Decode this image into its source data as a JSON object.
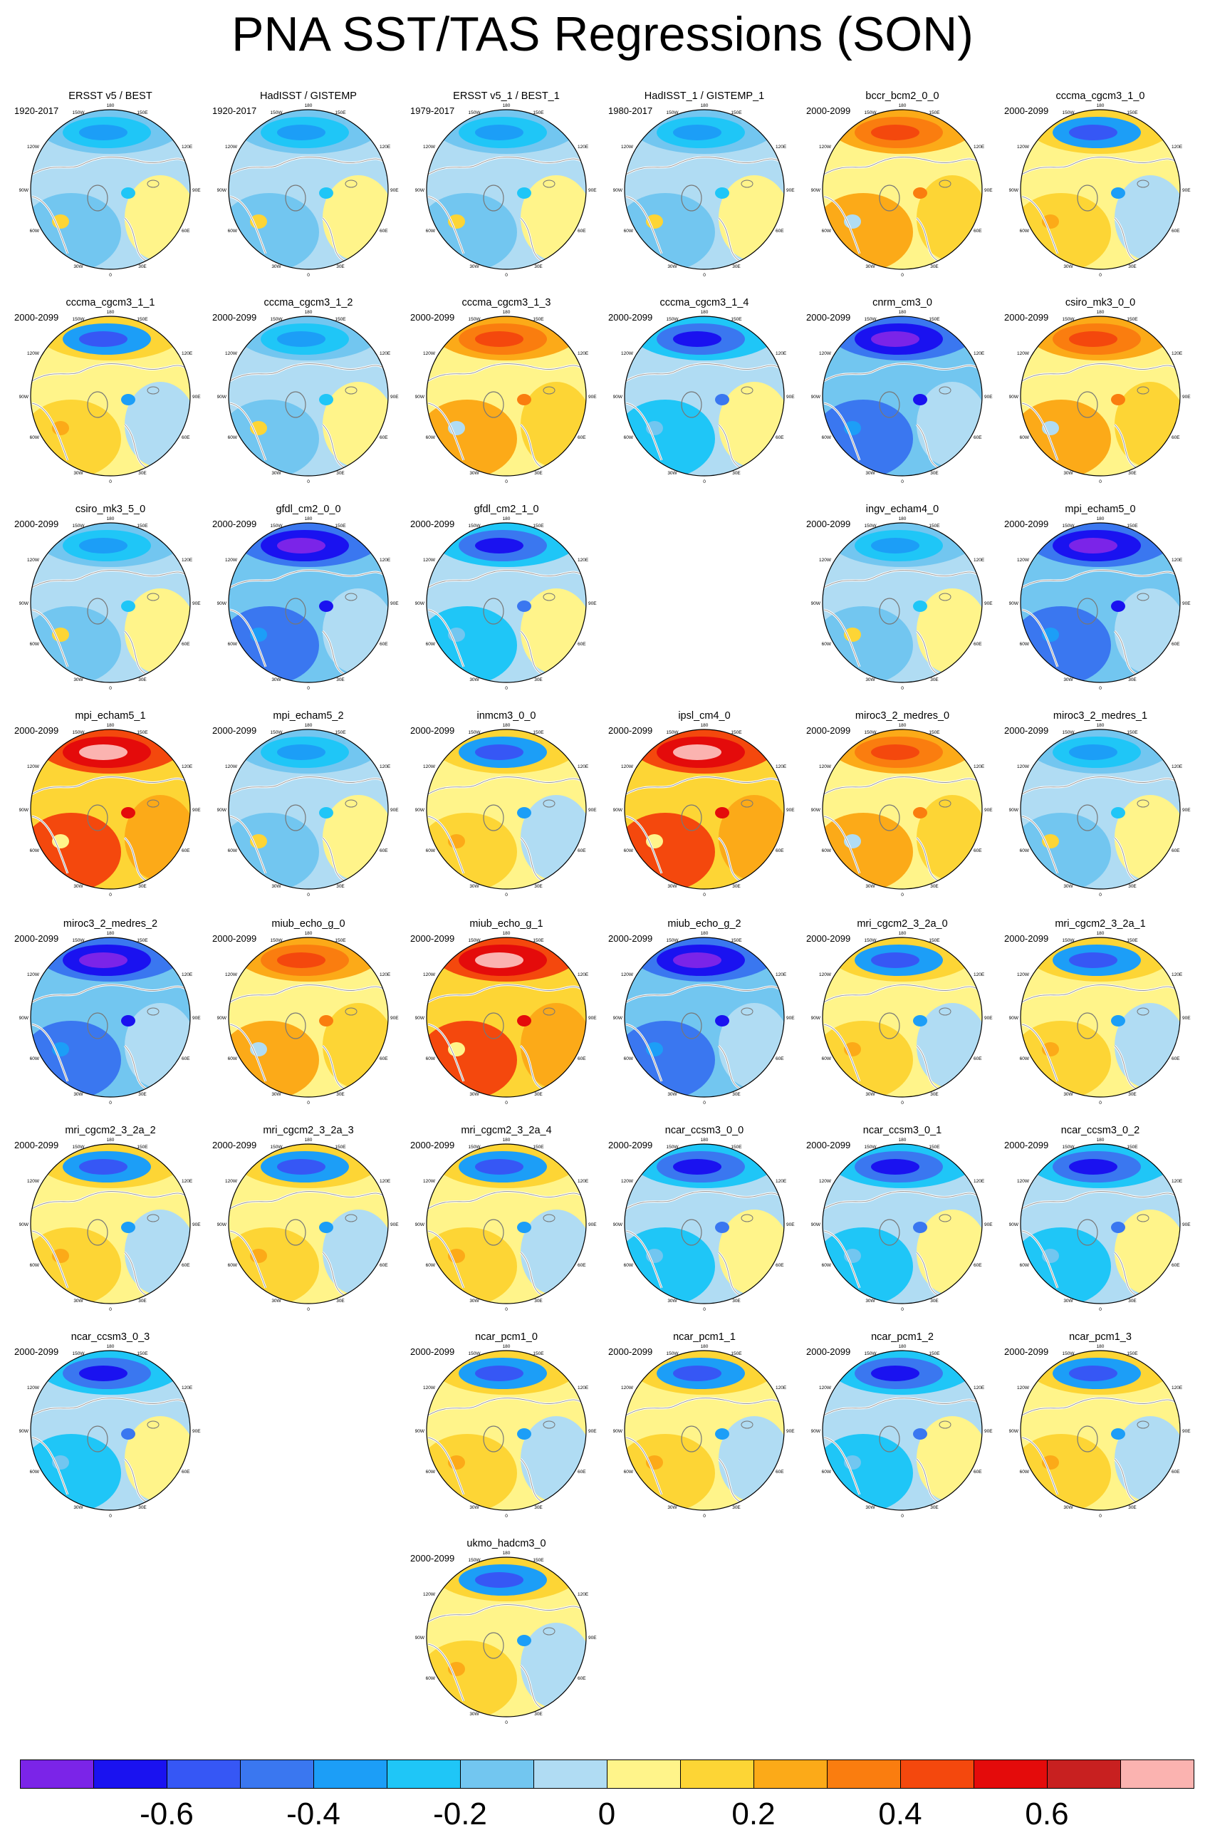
{
  "title": "PNA SST/TAS Regressions (SON)",
  "lon_labels": [
    "180",
    "150W",
    "150E",
    "120W",
    "120E",
    "90W",
    "90E",
    "60W",
    "60E",
    "30W",
    "30E",
    "0"
  ],
  "colorbar": {
    "colors": [
      "#7b24e8",
      "#1a12f0",
      "#3657f5",
      "#3a77f0",
      "#1c9ef7",
      "#1fc6f7",
      "#72c6f0",
      "#b0dcf3",
      "#fff48a",
      "#fdd535",
      "#fcaa18",
      "#fa7d0f",
      "#f4480d",
      "#e40b0b",
      "#c82020",
      "#fbb3b0"
    ],
    "labels": [
      "-0.6",
      "-0.4",
      "-0.2",
      "0",
      "0.2",
      "0.4",
      "0.6"
    ]
  },
  "panels": [
    {
      "row": 0,
      "col": 0,
      "title": "ERSST v5 / BEST",
      "period": "1920-2017",
      "pattern": "obs"
    },
    {
      "row": 0,
      "col": 1,
      "title": "HadISST / GISTEMP",
      "period": "1920-2017",
      "pattern": "obs"
    },
    {
      "row": 0,
      "col": 2,
      "title": "ERSST v5_1 / BEST_1",
      "period": "1979-2017",
      "pattern": "obs"
    },
    {
      "row": 0,
      "col": 3,
      "title": "HadISST_1 / GISTEMP_1",
      "period": "1980-2017",
      "pattern": "obs"
    },
    {
      "row": 0,
      "col": 4,
      "title": "bccr_bcm2_0_0",
      "period": "2000-2099",
      "pattern": "warm"
    },
    {
      "row": 0,
      "col": 5,
      "title": "cccma_cgcm3_1_0",
      "period": "2000-2099",
      "pattern": "mixed"
    },
    {
      "row": 1,
      "col": 0,
      "title": "cccma_cgcm3_1_1",
      "period": "2000-2099",
      "pattern": "mixed"
    },
    {
      "row": 1,
      "col": 1,
      "title": "cccma_cgcm3_1_2",
      "period": "2000-2099",
      "pattern": "obs"
    },
    {
      "row": 1,
      "col": 2,
      "title": "cccma_cgcm3_1_3",
      "period": "2000-2099",
      "pattern": "warm"
    },
    {
      "row": 1,
      "col": 3,
      "title": "cccma_cgcm3_1_4",
      "period": "2000-2099",
      "pattern": "cool"
    },
    {
      "row": 1,
      "col": 4,
      "title": "cnrm_cm3_0",
      "period": "2000-2099",
      "pattern": "deepcool"
    },
    {
      "row": 1,
      "col": 5,
      "title": "csiro_mk3_0_0",
      "period": "2000-2099",
      "pattern": "warm"
    },
    {
      "row": 2,
      "col": 0,
      "title": "csiro_mk3_5_0",
      "period": "2000-2099",
      "pattern": "obs"
    },
    {
      "row": 2,
      "col": 1,
      "title": "gfdl_cm2_0_0",
      "period": "2000-2099",
      "pattern": "deepcool"
    },
    {
      "row": 2,
      "col": 2,
      "title": "gfdl_cm2_1_0",
      "period": "2000-2099",
      "pattern": "cool"
    },
    {
      "row": 2,
      "col": 4,
      "title": "ingv_echam4_0",
      "period": "2000-2099",
      "pattern": "obs"
    },
    {
      "row": 2,
      "col": 5,
      "title": "mpi_echam5_0",
      "period": "2000-2099",
      "pattern": "deepcool"
    },
    {
      "row": 3,
      "col": 0,
      "title": "mpi_echam5_1",
      "period": "2000-2099",
      "pattern": "hot"
    },
    {
      "row": 3,
      "col": 1,
      "title": "mpi_echam5_2",
      "period": "2000-2099",
      "pattern": "obs"
    },
    {
      "row": 3,
      "col": 2,
      "title": "inmcm3_0_0",
      "period": "2000-2099",
      "pattern": "mixed"
    },
    {
      "row": 3,
      "col": 3,
      "title": "ipsl_cm4_0",
      "period": "2000-2099",
      "pattern": "hot"
    },
    {
      "row": 3,
      "col": 4,
      "title": "miroc3_2_medres_0",
      "period": "2000-2099",
      "pattern": "warm"
    },
    {
      "row": 3,
      "col": 5,
      "title": "miroc3_2_medres_1",
      "period": "2000-2099",
      "pattern": "obs"
    },
    {
      "row": 4,
      "col": 0,
      "title": "miroc3_2_medres_2",
      "period": "2000-2099",
      "pattern": "deepcool"
    },
    {
      "row": 4,
      "col": 1,
      "title": "miub_echo_g_0",
      "period": "2000-2099",
      "pattern": "warm"
    },
    {
      "row": 4,
      "col": 2,
      "title": "miub_echo_g_1",
      "period": "2000-2099",
      "pattern": "hot"
    },
    {
      "row": 4,
      "col": 3,
      "title": "miub_echo_g_2",
      "period": "2000-2099",
      "pattern": "deepcool"
    },
    {
      "row": 4,
      "col": 4,
      "title": "mri_cgcm2_3_2a_0",
      "period": "2000-2099",
      "pattern": "mixed"
    },
    {
      "row": 4,
      "col": 5,
      "title": "mri_cgcm2_3_2a_1",
      "period": "2000-2099",
      "pattern": "mixed"
    },
    {
      "row": 5,
      "col": 0,
      "title": "mri_cgcm2_3_2a_2",
      "period": "2000-2099",
      "pattern": "mixed"
    },
    {
      "row": 5,
      "col": 1,
      "title": "mri_cgcm2_3_2a_3",
      "period": "2000-2099",
      "pattern": "mixed"
    },
    {
      "row": 5,
      "col": 2,
      "title": "mri_cgcm2_3_2a_4",
      "period": "2000-2099",
      "pattern": "mixed"
    },
    {
      "row": 5,
      "col": 3,
      "title": "ncar_ccsm3_0_0",
      "period": "2000-2099",
      "pattern": "cool"
    },
    {
      "row": 5,
      "col": 4,
      "title": "ncar_ccsm3_0_1",
      "period": "2000-2099",
      "pattern": "cool"
    },
    {
      "row": 5,
      "col": 5,
      "title": "ncar_ccsm3_0_2",
      "period": "2000-2099",
      "pattern": "cool"
    },
    {
      "row": 6,
      "col": 0,
      "title": "ncar_ccsm3_0_3",
      "period": "2000-2099",
      "pattern": "cool"
    },
    {
      "row": 6,
      "col": 2,
      "title": "ncar_pcm1_0",
      "period": "2000-2099",
      "pattern": "mixed"
    },
    {
      "row": 6,
      "col": 3,
      "title": "ncar_pcm1_1",
      "period": "2000-2099",
      "pattern": "mixed"
    },
    {
      "row": 6,
      "col": 4,
      "title": "ncar_pcm1_2",
      "period": "2000-2099",
      "pattern": "cool"
    },
    {
      "row": 6,
      "col": 5,
      "title": "ncar_pcm1_3",
      "period": "2000-2099",
      "pattern": "mixed"
    },
    {
      "row": 7,
      "col": 2,
      "title": "ukmo_hadcm3_0",
      "period": "2000-2099",
      "pattern": "mixed"
    }
  ]
}
